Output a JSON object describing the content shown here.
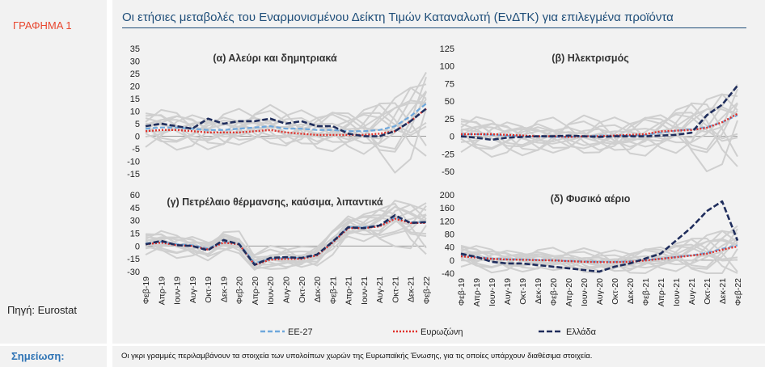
{
  "figure_label": "ΓΡΑΦΗΜΑ 1",
  "title": "Οι ετήσιες μεταβολές του Εναρμονισμένου Δείκτη Τιμών Καταναλωτή (ΕνΔΤΚ) για επιλεγμένα προϊόντα",
  "source": "Πηγή: Eurostat",
  "note_label": "Σημείωση:",
  "note_text": "Οι γκρι γραμμές περιλαμβάνουν τα στοιχεία των υπολοίπων χωρών της Ευρωπαϊκής Ένωσης, για τις οποίες υπάρχουν διαθέσιμα στοιχεία.",
  "colors": {
    "eu27": "#6fa8dc",
    "eurozone": "#e0302a",
    "greece": "#1f2d5c",
    "others": "#cfcfcf",
    "title": "#1f4e79",
    "accent": "#e8462e"
  },
  "legend": [
    "ΕΕ-27",
    "Ευρωζώνη",
    "Ελλάδα"
  ],
  "x_tick_labels": [
    "Φεβ-19",
    "Απρ-19",
    "Ιουν-19",
    "Αυγ-19",
    "Οκτ-19",
    "Δεκ-19",
    "Φεβ-20",
    "Απρ-20",
    "Ιουν-20",
    "Αυγ-20",
    "Οκτ-20",
    "Δεκ-20",
    "Φεβ-21",
    "Απρ-21",
    "Ιουν-21",
    "Αυγ-21",
    "Οκτ-21",
    "Δεκ-21",
    "Φεβ-22"
  ],
  "chart_data": [
    {
      "type": "line",
      "title": "(α) Αλεύρι και δημητριακά",
      "ylim": [
        -15,
        35
      ],
      "yticks": [
        -15,
        -10,
        -5,
        0,
        5,
        10,
        15,
        20,
        25,
        30,
        35
      ],
      "categories": [
        "Φεβ-19",
        "Απρ-19",
        "Ιουν-19",
        "Αυγ-19",
        "Οκτ-19",
        "Δεκ-19",
        "Φεβ-20",
        "Απρ-20",
        "Ιουν-20",
        "Αυγ-20",
        "Οκτ-20",
        "Δεκ-20",
        "Φεβ-21",
        "Απρ-21",
        "Ιουν-21",
        "Αυγ-21",
        "Οκτ-21",
        "Δεκ-21",
        "Φεβ-22"
      ],
      "series": [
        {
          "name": "ΕΕ-27",
          "values": [
            3,
            3.5,
            3.5,
            3,
            2.5,
            2.5,
            3,
            3.5,
            4,
            3,
            3,
            2.5,
            2.5,
            2,
            2,
            2.5,
            4,
            8,
            13
          ]
        },
        {
          "name": "Ευρωζώνη",
          "values": [
            2,
            2.5,
            2.5,
            2,
            1.5,
            1.5,
            1.5,
            2,
            2.5,
            1.5,
            1,
            0.5,
            0.5,
            0.5,
            0.5,
            1,
            2,
            6,
            11
          ]
        },
        {
          "name": "Ελλάδα",
          "values": [
            4,
            5,
            4,
            3,
            7,
            5,
            6,
            6,
            7,
            5,
            6,
            4,
            4,
            1,
            0,
            0,
            2,
            6,
            11
          ]
        }
      ]
    },
    {
      "type": "line",
      "title": "(β) Ηλεκτρισμός",
      "ylim": [
        -50,
        125
      ],
      "yticks": [
        -50,
        -25,
        0,
        25,
        50,
        75,
        100,
        125
      ],
      "categories": [
        "Φεβ-19",
        "Απρ-19",
        "Ιουν-19",
        "Αυγ-19",
        "Οκτ-19",
        "Δεκ-19",
        "Φεβ-20",
        "Απρ-20",
        "Ιουν-20",
        "Αυγ-20",
        "Οκτ-20",
        "Δεκ-20",
        "Φεβ-21",
        "Απρ-21",
        "Ιουν-21",
        "Αυγ-21",
        "Οκτ-21",
        "Δεκ-21",
        "Φεβ-22"
      ],
      "series": [
        {
          "name": "ΕΕ-27",
          "values": [
            3,
            3,
            2,
            1,
            0,
            0,
            -1,
            -1,
            0,
            1,
            1,
            1,
            2,
            5,
            8,
            10,
            13,
            20,
            30
          ]
        },
        {
          "name": "Ευρωζώνη",
          "values": [
            3,
            3,
            3,
            2,
            1,
            0,
            0,
            -1,
            0,
            0,
            1,
            2,
            3,
            7,
            8,
            9,
            12,
            20,
            32
          ]
        },
        {
          "name": "Ελλάδα",
          "values": [
            0,
            -2,
            -5,
            -2,
            -1,
            0,
            0,
            1,
            0,
            -1,
            0,
            0,
            0,
            1,
            2,
            5,
            30,
            45,
            72
          ]
        }
      ]
    },
    {
      "type": "line",
      "title": "(γ) Πετρέλαιο θέρμανσης, καύσιμα, λιπαντικά",
      "ylim": [
        -30,
        60
      ],
      "yticks": [
        -30,
        -15,
        0,
        15,
        30,
        45,
        60
      ],
      "categories": [
        "Φεβ-19",
        "Απρ-19",
        "Ιουν-19",
        "Αυγ-19",
        "Οκτ-19",
        "Δεκ-19",
        "Φεβ-20",
        "Απρ-20",
        "Ιουν-20",
        "Αυγ-20",
        "Οκτ-20",
        "Δεκ-20",
        "Φεβ-21",
        "Απρ-21",
        "Ιουν-21",
        "Αυγ-21",
        "Οκτ-21",
        "Δεκ-21",
        "Φεβ-22"
      ],
      "series": [
        {
          "name": "ΕΕ-27",
          "values": [
            3,
            5,
            2,
            1,
            -3,
            5,
            3,
            -20,
            -15,
            -14,
            -14,
            -10,
            5,
            22,
            22,
            24,
            33,
            28,
            28
          ]
        },
        {
          "name": "Ευρωζώνη",
          "values": [
            2,
            4,
            1,
            0,
            -4,
            4,
            2,
            -22,
            -16,
            -15,
            -15,
            -11,
            4,
            21,
            21,
            23,
            32,
            27,
            27
          ]
        },
        {
          "name": "Ελλάδα",
          "values": [
            2,
            6,
            1,
            0,
            -5,
            7,
            2,
            -22,
            -14,
            -13,
            -14,
            -10,
            5,
            22,
            21,
            24,
            36,
            27,
            28
          ]
        }
      ]
    },
    {
      "type": "line",
      "title": "(δ) Φυσικό αέριο",
      "ylim": [
        -40,
        200
      ],
      "yticks": [
        -40,
        0,
        40,
        80,
        120,
        160,
        200
      ],
      "categories": [
        "Φεβ-19",
        "Απρ-19",
        "Ιουν-19",
        "Αυγ-19",
        "Οκτ-19",
        "Δεκ-19",
        "Φεβ-20",
        "Απρ-20",
        "Ιουν-20",
        "Αυγ-20",
        "Οκτ-20",
        "Δεκ-20",
        "Φεβ-21",
        "Απρ-21",
        "Ιουν-21",
        "Αυγ-21",
        "Οκτ-21",
        "Δεκ-21",
        "Φεβ-22"
      ],
      "series": [
        {
          "name": "ΕΕ-27",
          "values": [
            15,
            10,
            5,
            3,
            2,
            1,
            0,
            -2,
            -4,
            -5,
            -5,
            -4,
            0,
            5,
            10,
            15,
            22,
            35,
            45
          ]
        },
        {
          "name": "Ευρωζώνη",
          "values": [
            12,
            8,
            4,
            2,
            1,
            0,
            -1,
            -3,
            -5,
            -6,
            -6,
            -5,
            -1,
            4,
            9,
            14,
            20,
            32,
            42
          ]
        },
        {
          "name": "Ελλάδα",
          "values": [
            20,
            10,
            -5,
            -10,
            -10,
            -15,
            -20,
            -25,
            -30,
            -35,
            -20,
            -10,
            5,
            20,
            60,
            100,
            150,
            180,
            60
          ]
        }
      ]
    }
  ]
}
